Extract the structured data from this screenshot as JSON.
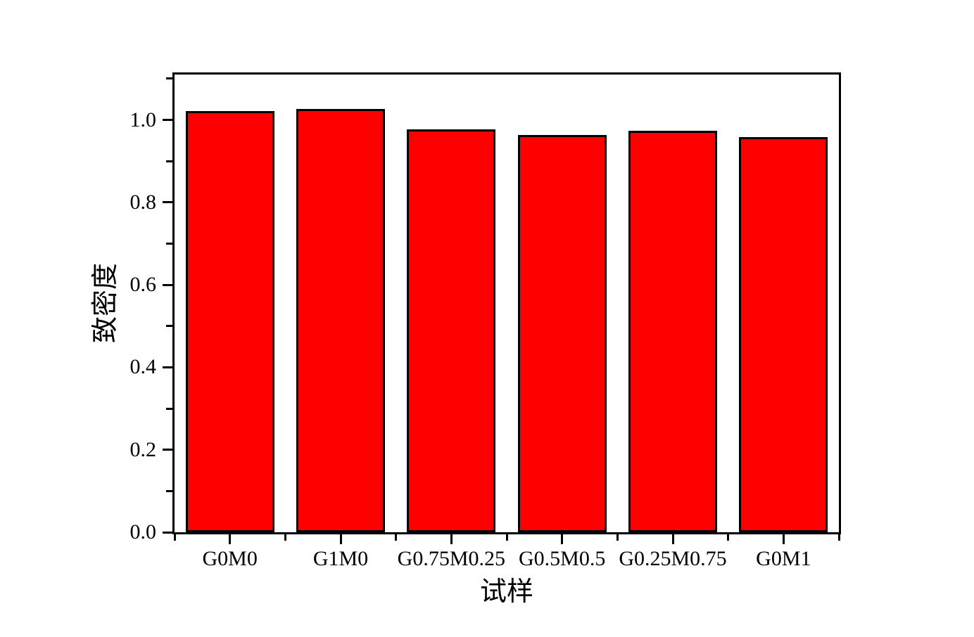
{
  "chart_data": {
    "type": "bar",
    "title": "",
    "categories": [
      "G0M0",
      "G1M0",
      "G0.75M0.25",
      "G0.5M0.5",
      "G0.25M0.75",
      "G0M1"
    ],
    "values": [
      1.021,
      1.026,
      0.977,
      0.963,
      0.973,
      0.958
    ],
    "xlabel": "试样",
    "ylabel": "致密度",
    "ylim": [
      0,
      1.11
    ],
    "yticks": [
      0.0,
      0.2,
      0.4,
      0.6,
      0.8,
      1.0
    ],
    "ytick_labels": [
      "0.0",
      "0.2",
      "0.4",
      "0.6",
      "0.8",
      "1.0"
    ],
    "yminor_step": 0.1,
    "bar_width_fraction": 0.8,
    "grid": false,
    "legend": "none",
    "colors": {
      "bar_fill": "#FF0000",
      "bar_edge": "#000000",
      "axis": "#000000",
      "background": "#FFFFFF",
      "text": "#000000"
    }
  }
}
